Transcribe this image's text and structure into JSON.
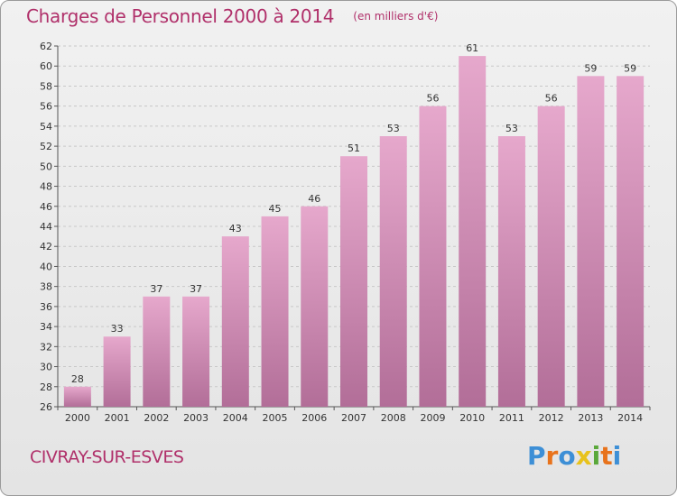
{
  "header": {
    "title": "Charges de Personnel 2000 à 2014",
    "subtitle": "(en milliers d'€)"
  },
  "footer": {
    "commune": "CIVRAY-SUR-ESVES",
    "logo_text": "Proxiti"
  },
  "colors": {
    "title": "#b0306a",
    "bar_top": "#e6a8cc",
    "bar_bottom": "#b26e98",
    "grid": "#c8c8c8",
    "logo": [
      "#3d8fd6",
      "#e8731c",
      "#3d8fd6",
      "#e8c21c",
      "#5aa83a",
      "#e8731c",
      "#3d8fd6"
    ]
  },
  "chart_data": {
    "type": "bar",
    "title": "Charges de Personnel 2000 à 2014",
    "subtitle": "(en milliers d'€)",
    "categories": [
      "2000",
      "2001",
      "2002",
      "2003",
      "2004",
      "2005",
      "2006",
      "2007",
      "2008",
      "2009",
      "2010",
      "2011",
      "2012",
      "2013",
      "2014"
    ],
    "values": [
      28,
      33,
      37,
      37,
      43,
      45,
      46,
      51,
      53,
      56,
      61,
      53,
      56,
      59,
      59
    ],
    "ylim": [
      26,
      62
    ],
    "ytick_step": 2,
    "grid": true,
    "xlabel": "",
    "ylabel": ""
  }
}
